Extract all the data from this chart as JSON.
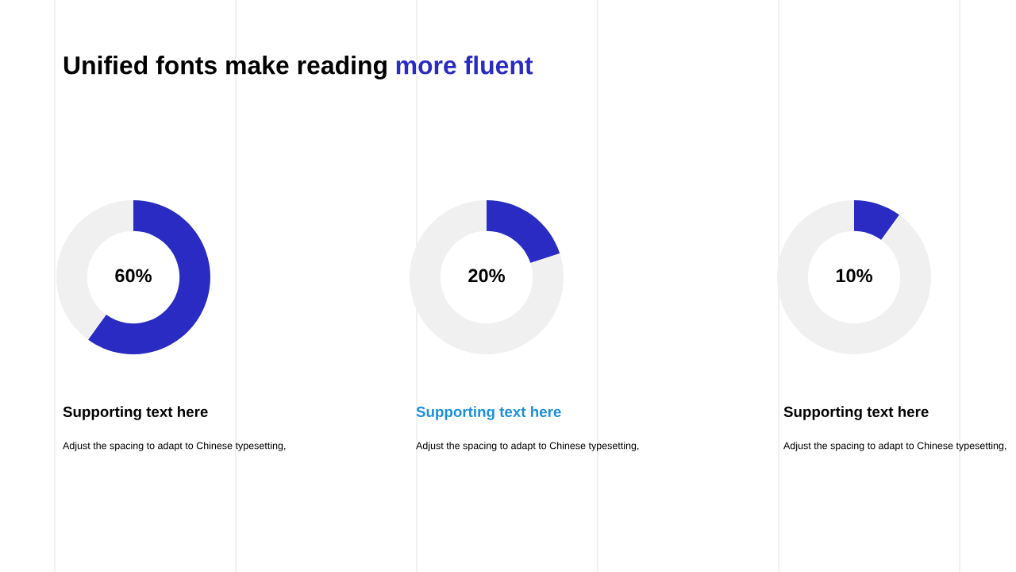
{
  "chart_data": [
    {
      "type": "other",
      "title": "Unified fonts make reading more fluent",
      "colors": [
        "#000000",
        "#2a2bc2"
      ]
    },
    {
      "type": "donut",
      "title": "Supporting text here",
      "categories": [
        null,
        null
      ],
      "values": [
        60,
        40
      ],
      "colors": [
        "#2a2bc2",
        "#f0f0f0"
      ],
      "value_labels": [
        "60%",
        null
      ],
      "annotations": [
        "Adjust the spacing to adapt to Chinese typesetting,"
      ]
    },
    {
      "type": "donut",
      "title": "Supporting text here",
      "categories": [
        null,
        null
      ],
      "values": [
        20,
        80
      ],
      "colors": [
        "#2a2bc2",
        "#f0f0f0"
      ],
      "value_labels": [
        "20%",
        null
      ],
      "annotations": [
        "Adjust the spacing to adapt to Chinese typesetting,"
      ]
    },
    {
      "type": "donut",
      "title": "Supporting text here",
      "categories": [
        null,
        null
      ],
      "values": [
        10,
        90
      ],
      "colors": [
        "#2a2bc2",
        "#f0f0f0"
      ],
      "value_labels": [
        "10%",
        null
      ],
      "annotations": [
        "Adjust the spacing to adapt to Chinese typesetting,"
      ]
    }
  ]
}
